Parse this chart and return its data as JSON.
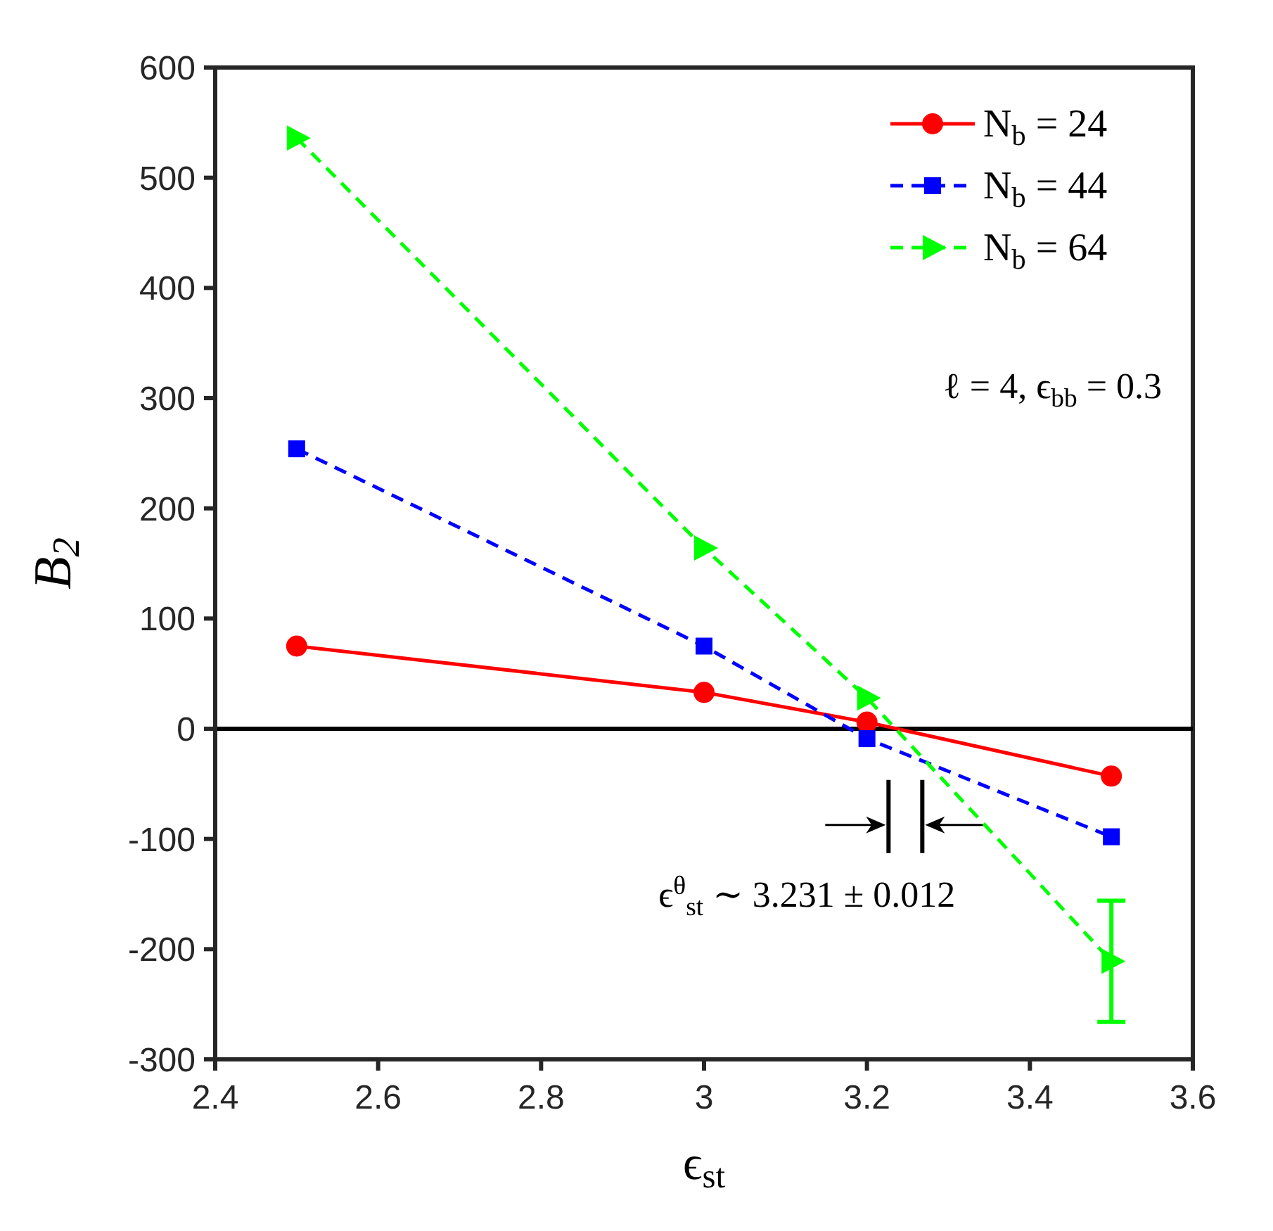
{
  "chart_data": {
    "type": "line",
    "xlabel": "ϵ$_{st}$",
    "ylabel": "B$_{2}$",
    "x": [
      2.5,
      3,
      3.2,
      3.5
    ],
    "series": [
      {
        "name": "N$_{b}$ = 24",
        "color": "#ff0000",
        "values": [
          75,
          33,
          6,
          -43
        ],
        "marker": "circle",
        "line_style": "solid"
      },
      {
        "name": "N$_{b}$ = 44",
        "color": "#0000ff",
        "values": [
          254,
          75,
          -9,
          -98
        ],
        "marker": "square",
        "line_style": "dashed"
      },
      {
        "name": "N$_{b}$ = 64",
        "color": "#00ff00",
        "values": [
          536,
          164,
          28,
          -211
        ],
        "marker": "triangle",
        "line_style": "dashed",
        "errors": [
          null,
          null,
          null,
          55
        ]
      }
    ],
    "xlim": [
      2.4,
      3.6
    ],
    "xticks": [
      2.4,
      2.6,
      2.8,
      3,
      3.2,
      3.4,
      3.6
    ],
    "ylim": [
      -300,
      600
    ],
    "yticks": [
      -300,
      -200,
      -100,
      0,
      100,
      200,
      300,
      400,
      500,
      600
    ],
    "ref_lines": [
      {
        "axis": "y",
        "value": 0,
        "color": "#000000"
      }
    ],
    "annotations": [
      "ℓ = 4, ϵ$_{bb}$ = 0.3",
      "ϵ$^{θ}$$_{st}$ ∼ 3.231 ± 0.012"
    ],
    "legend": "top right",
    "grid": false
  }
}
